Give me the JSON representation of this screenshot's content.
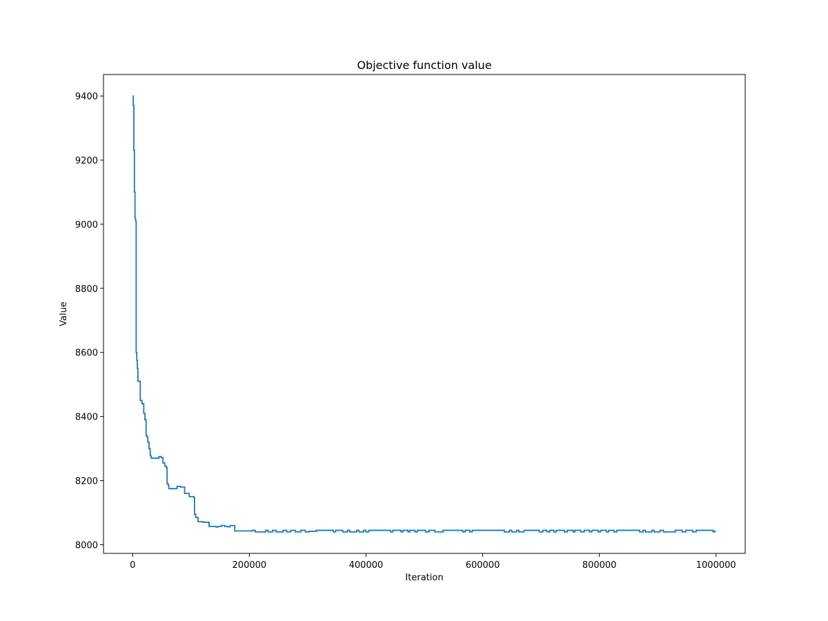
{
  "chart_data": {
    "type": "line",
    "title": "Objective function value",
    "xlabel": "Iteration",
    "ylabel": "Value",
    "xlim": [
      -50000,
      1050000
    ],
    "ylim": [
      7973,
      9467
    ],
    "xticks": [
      0,
      200000,
      400000,
      600000,
      800000,
      1000000
    ],
    "yticks": [
      8000,
      8200,
      8400,
      8600,
      8800,
      9000,
      9200,
      9400
    ],
    "grid": false,
    "line_color": "#1f77b4",
    "series": [
      {
        "step": "post",
        "x": [
          0,
          1000,
          2000,
          3000,
          4000,
          5000,
          6000,
          7000,
          8000,
          9000,
          10000,
          11000,
          13000,
          16000,
          19000,
          21000,
          23000,
          25000,
          26000,
          28000,
          30000,
          31000,
          32000,
          33000,
          37000,
          45000,
          49000,
          52000,
          55000,
          58000,
          59000,
          61000,
          62000,
          70000,
          76000,
          82000,
          89000,
          97000,
          105000,
          106000,
          108000,
          112000,
          121000,
          131000,
          135000,
          141000,
          143000,
          146000,
          152000,
          158000,
          163000,
          167000,
          175000,
          198000,
          205000,
          210000,
          228000,
          232000,
          240000,
          246000,
          258000,
          264000,
          271000,
          279000,
          288000,
          296000,
          303000,
          315000,
          330000,
          344000,
          348000,
          360000,
          368000,
          372000,
          384000,
          388000,
          396000,
          400000,
          405000,
          415000,
          425000,
          442000,
          446000,
          460000,
          463000,
          472000,
          475000,
          484000,
          488000,
          502000,
          508000,
          518000,
          532000,
          537000,
          566000,
          570000,
          578000,
          582000,
          598000,
          630000,
          637000,
          646000,
          650000,
          658000,
          662000,
          671000,
          687000,
          697000,
          703000,
          710000,
          715000,
          722000,
          726000,
          740000,
          745000,
          755000,
          758000,
          768000,
          774000,
          783000,
          787000,
          798000,
          802000,
          812000,
          816000,
          825000,
          830000,
          860000,
          869000,
          875000,
          879000,
          890000,
          894000,
          904000,
          910000,
          930000,
          935000,
          942000,
          948000,
          960000,
          966000,
          980000,
          985000,
          995000,
          998000
        ],
        "y": [
          9400,
          9370,
          9230,
          9100,
          9020,
          9010,
          8600,
          8575,
          8550,
          8510,
          8510,
          8510,
          8450,
          8440,
          8410,
          8390,
          8340,
          8335,
          8320,
          8300,
          8280,
          8275,
          8270,
          8270,
          8270,
          8275,
          8272,
          8255,
          8245,
          8240,
          8190,
          8185,
          8175,
          8175,
          8182,
          8180,
          8160,
          8150,
          8147,
          8095,
          8085,
          8072,
          8070,
          8057,
          8057,
          8057,
          8055,
          8057,
          8060,
          8057,
          8056,
          8060,
          8043,
          8043,
          8045,
          8040,
          8045,
          8040,
          8045,
          8040,
          8045,
          8040,
          8045,
          8040,
          8045,
          8040,
          8042,
          8045,
          8045,
          8040,
          8045,
          8040,
          8045,
          8040,
          8045,
          8040,
          8045,
          8040,
          8045,
          8045,
          8045,
          8040,
          8045,
          8040,
          8045,
          8040,
          8045,
          8040,
          8045,
          8040,
          8045,
          8040,
          8045,
          8045,
          8040,
          8045,
          8040,
          8045,
          8045,
          8045,
          8040,
          8045,
          8040,
          8045,
          8040,
          8045,
          8045,
          8040,
          8045,
          8040,
          8045,
          8040,
          8045,
          8040,
          8045,
          8040,
          8045,
          8040,
          8045,
          8040,
          8045,
          8040,
          8045,
          8040,
          8045,
          8040,
          8045,
          8045,
          8040,
          8045,
          8040,
          8045,
          8040,
          8045,
          8040,
          8045,
          8045,
          8040,
          8045,
          8040,
          8045,
          8045,
          8045,
          8040,
          8045
        ]
      }
    ]
  }
}
